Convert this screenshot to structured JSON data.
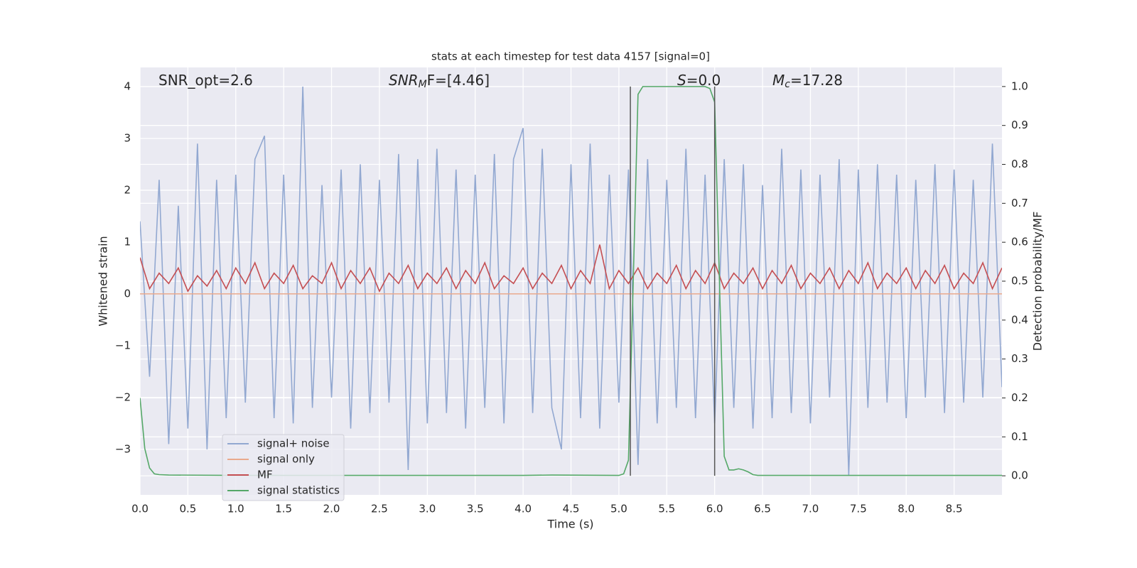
{
  "chart_data": {
    "type": "line",
    "title": "stats at each timestep for test data 4157 [signal=0]",
    "xlabel": "Time (s)",
    "ylabel": "Whitened strain",
    "y2label": "Detection probability/MF",
    "annotations": [
      [
        "SNR_opt=2.6"
      ],
      [
        "SNR",
        "M",
        "F=[4.46]"
      ],
      [
        "S",
        "=0.0"
      ],
      [
        "M",
        "c",
        "=17.28"
      ]
    ],
    "xlim": [
      0,
      9.0
    ],
    "xticks": [
      {
        "value": 0,
        "label": "0.0"
      },
      0.5,
      {
        "value": 1,
        "label": "1.0"
      },
      1.5,
      {
        "value": 2,
        "label": "2.0"
      },
      2.5,
      {
        "value": 3,
        "label": "3.0"
      },
      3.5,
      {
        "value": 4,
        "label": "4.0"
      },
      4.5,
      {
        "value": 5,
        "label": "5.0"
      },
      5.5,
      {
        "value": 6,
        "label": "6.0"
      },
      6.5,
      {
        "value": 7,
        "label": "7.0"
      },
      7.5,
      {
        "value": 8,
        "label": "8.0"
      },
      8.5
    ],
    "ylim": [
      -3.88,
      4.37
    ],
    "yticks": [
      {
        "value": -3,
        "label": "−3"
      },
      {
        "value": -2,
        "label": "−2"
      },
      {
        "value": -1,
        "label": "−1"
      },
      0,
      1,
      2,
      3,
      4
    ],
    "y2lim": [
      -0.049,
      1.049
    ],
    "y2ticks": [
      {
        "value": 0,
        "label": "0.0"
      },
      0.1,
      0.2,
      0.3,
      0.4,
      0.5,
      0.6,
      0.7,
      0.8,
      0.9,
      {
        "value": 1,
        "label": "1.0"
      }
    ],
    "grid": true,
    "legend": "lower left",
    "vlines": [
      5.12,
      6.0
    ],
    "vline_color": "#555555",
    "x": [
      0,
      0.1,
      0.2,
      0.3,
      0.4,
      0.5,
      0.6,
      0.7,
      0.8,
      0.9,
      1,
      1.1,
      1.2,
      1.3,
      1.4,
      1.5,
      1.6,
      1.7,
      1.8,
      1.9,
      2,
      2.1,
      2.2,
      2.3,
      2.4,
      2.5,
      2.6,
      2.7,
      2.8,
      2.9,
      3,
      3.1,
      3.2,
      3.3,
      3.4,
      3.5,
      3.6,
      3.7,
      3.8,
      3.9,
      4,
      4.1,
      4.2,
      4.3,
      4.4,
      4.5,
      4.6,
      4.7,
      4.8,
      4.9,
      5,
      5.1,
      5.2,
      5.3,
      5.4,
      5.5,
      5.6,
      5.7,
      5.8,
      5.9,
      6,
      6.1,
      6.2,
      6.3,
      6.4,
      6.5,
      6.6,
      6.7,
      6.8,
      6.9,
      7,
      7.1,
      7.2,
      7.3,
      7.4,
      7.5,
      7.6,
      7.7,
      7.8,
      7.9,
      8,
      8.1,
      8.2,
      8.3,
      8.4,
      8.5,
      8.6,
      8.7,
      8.8,
      8.9,
      9
    ],
    "series": [
      {
        "name": "signal+ noise",
        "color": "#92a8d1",
        "values": [
          1.4,
          -1.6,
          2.2,
          -2.9,
          1.7,
          -2.6,
          2.9,
          -3.0,
          2.2,
          -2.4,
          2.3,
          -2.1,
          2.6,
          3.05,
          -2.4,
          2.3,
          -2.5,
          4.0,
          -2.2,
          2.1,
          -2.0,
          2.4,
          -2.6,
          2.5,
          -2.3,
          2.2,
          -2.1,
          2.7,
          -3.4,
          2.6,
          -2.5,
          2.8,
          -2.3,
          2.4,
          -2.6,
          2.3,
          -2.2,
          2.7,
          -2.5,
          2.6,
          3.2,
          -2.3,
          2.8,
          -2.2,
          -3.0,
          2.5,
          -2.4,
          2.9,
          -2.6,
          2.3,
          -2.1,
          2.4,
          -3.3,
          2.6,
          -2.5,
          2.2,
          -2.2,
          2.8,
          -2.4,
          2.3,
          -2.5,
          2.6,
          -2.2,
          2.5,
          -2.6,
          2.1,
          -2.4,
          2.8,
          -2.3,
          2.4,
          -2.5,
          2.3,
          -2.0,
          2.6,
          -3.5,
          2.4,
          -2.2,
          2.5,
          -2.1,
          2.3,
          -2.4,
          2.2,
          -2.0,
          2.5,
          -2.3,
          2.4,
          -2.1,
          2.2,
          -2.0,
          2.9,
          -1.8
        ]
      },
      {
        "name": "signal only",
        "color": "#e9a98c",
        "x": [
          0,
          9.0
        ],
        "values": [
          0,
          0
        ]
      },
      {
        "name": "MF",
        "color": "#c44e52",
        "values": [
          0.7,
          0.1,
          0.4,
          0.2,
          0.5,
          0.05,
          0.35,
          0.15,
          0.45,
          0.1,
          0.5,
          0.2,
          0.6,
          0.1,
          0.4,
          0.2,
          0.55,
          0.1,
          0.35,
          0.2,
          0.6,
          0.1,
          0.45,
          0.2,
          0.5,
          0.05,
          0.4,
          0.2,
          0.55,
          0.1,
          0.4,
          0.2,
          0.5,
          0.1,
          0.45,
          0.2,
          0.6,
          0.1,
          0.35,
          0.2,
          0.5,
          0.1,
          0.4,
          0.2,
          0.55,
          0.1,
          0.45,
          0.2,
          0.95,
          0.1,
          0.45,
          0.2,
          0.5,
          0.1,
          0.4,
          0.2,
          0.55,
          0.1,
          0.45,
          0.2,
          0.6,
          0.1,
          0.4,
          0.2,
          0.5,
          0.1,
          0.45,
          0.2,
          0.55,
          0.1,
          0.4,
          0.2,
          0.5,
          0.1,
          0.45,
          0.2,
          0.6,
          0.1,
          0.4,
          0.2,
          0.5,
          0.1,
          0.45,
          0.2,
          0.55,
          0.1,
          0.4,
          0.2,
          0.6,
          0.1,
          0.5
        ]
      },
      {
        "name": "signal statistics",
        "color": "#55a868",
        "axis": "y2",
        "x": [
          0,
          0.05,
          0.1,
          0.15,
          0.2,
          0.3,
          1.0,
          2.0,
          3.0,
          4.0,
          4.3,
          5.0,
          5.05,
          5.1,
          5.15,
          5.2,
          5.25,
          5.9,
          5.95,
          6.0,
          6.05,
          6.1,
          6.15,
          6.2,
          6.25,
          6.3,
          6.35,
          6.4,
          6.45,
          6.5,
          7.0,
          9.0
        ],
        "values": [
          0.2,
          0.07,
          0.02,
          0.005,
          0.003,
          0.002,
          0.001,
          0.001,
          0.001,
          0.001,
          0.002,
          0.001,
          0.005,
          0.04,
          0.5,
          0.98,
          1.0,
          1.0,
          0.995,
          0.96,
          0.5,
          0.05,
          0.015,
          0.015,
          0.018,
          0.015,
          0.01,
          0.003,
          0.001,
          0.001,
          0.001,
          0.001
        ]
      }
    ]
  }
}
